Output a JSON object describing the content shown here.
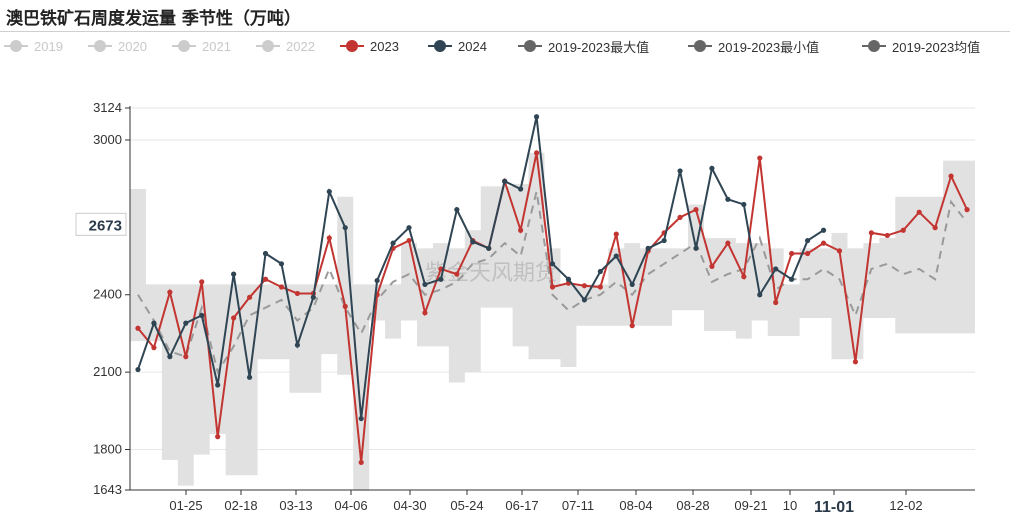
{
  "title": "澳巴铁矿石周度发运量 季节性（万吨）",
  "watermark": "紫金天风期货",
  "colors": {
    "c2023": "#c23531",
    "c2024": "#2f4554",
    "band": "#e1e1e1",
    "avg": "#9a9a9a",
    "legendOff": "#cccccc",
    "legendStat": "#666666"
  },
  "legend": [
    {
      "label": "2019",
      "active": false
    },
    {
      "label": "2020",
      "active": false
    },
    {
      "label": "2021",
      "active": false
    },
    {
      "label": "2022",
      "active": false
    },
    {
      "label": "2023",
      "active": true,
      "color": "#c23531"
    },
    {
      "label": "2024",
      "active": true,
      "color": "#2f4554"
    },
    {
      "label": "2019-2023最大值",
      "active": true,
      "color": "#666666"
    },
    {
      "label": "2019-2023最小值",
      "active": true,
      "color": "#666666"
    },
    {
      "label": "2019-2023均值",
      "active": true,
      "color": "#666666"
    }
  ],
  "chart_data": {
    "type": "line",
    "ylim": [
      1643,
      3124
    ],
    "yticks": [
      1643,
      1800,
      2100,
      2400,
      3000,
      3124
    ],
    "y_highlight": 2673,
    "xticks": [
      "01-25",
      "02-18",
      "03-13",
      "04-06",
      "04-30",
      "05-24",
      "06-17",
      "07-11",
      "08-04",
      "08-28",
      "09-21",
      "10",
      "11-01",
      "12-02"
    ],
    "x_highlight": "11-01",
    "weeks": 53,
    "series": [
      {
        "name": "2023",
        "values": [
          2270,
          2195,
          2410,
          2160,
          2450,
          1850,
          2310,
          2390,
          2460,
          2430,
          2405,
          2405,
          2620,
          2355,
          1750,
          2400,
          2580,
          2610,
          2330,
          2500,
          2480,
          2610,
          2580,
          2840,
          2650,
          2950,
          2430,
          2445,
          2435,
          2430,
          2635,
          2280,
          2570,
          2640,
          2700,
          2730,
          2510,
          2600,
          2470,
          2930,
          2370,
          2560,
          2560,
          2600,
          2570,
          2140,
          2640,
          2630,
          2650,
          2720,
          2660,
          2860,
          2730
        ]
      },
      {
        "name": "2024",
        "values": [
          2110,
          2290,
          2160,
          2290,
          2320,
          2050,
          2480,
          2080,
          2560,
          2520,
          2205,
          2390,
          2800,
          2660,
          1920,
          2455,
          2600,
          2660,
          2440,
          2460,
          2730,
          2605,
          2580,
          2840,
          2810,
          3090,
          2520,
          2460,
          2380,
          2490,
          2550,
          2440,
          2580,
          2610,
          2880,
          2580,
          2890,
          2770,
          2750,
          2400,
          2500,
          2460,
          2610,
          2650
        ]
      }
    ],
    "max": [
      2810,
      2440,
      2440,
      2440,
      2440,
      2440,
      2440,
      2440,
      2440,
      2440,
      2440,
      2440,
      2440,
      2780,
      2440,
      2440,
      2440,
      2600,
      2580,
      2600,
      2580,
      2650,
      2820,
      2820,
      2830,
      2950,
      2580,
      2440,
      2440,
      2440,
      2580,
      2600,
      2580,
      2580,
      2580,
      2750,
      2620,
      2620,
      2600,
      2600,
      2580,
      2440,
      2580,
      2580,
      2640,
      2580,
      2600,
      2620,
      2780,
      2780,
      2780,
      2920,
      2920
    ],
    "min": [
      2220,
      2220,
      1760,
      1660,
      1780,
      1860,
      1700,
      1700,
      2150,
      2150,
      2020,
      2020,
      2170,
      2090,
      1640,
      2300,
      2230,
      2300,
      2200,
      2200,
      2060,
      2100,
      2350,
      2350,
      2200,
      2150,
      2150,
      2120,
      2280,
      2280,
      2280,
      2280,
      2280,
      2280,
      2340,
      2340,
      2260,
      2260,
      2230,
      2300,
      2240,
      2240,
      2310,
      2310,
      2150,
      2150,
      2310,
      2310,
      2250,
      2250,
      2250,
      2250,
      2250
    ],
    "avg": [
      2400,
      2300,
      2180,
      2160,
      2350,
      2100,
      2200,
      2320,
      2350,
      2380,
      2300,
      2350,
      2500,
      2350,
      2250,
      2380,
      2450,
      2480,
      2400,
      2420,
      2450,
      2520,
      2540,
      2600,
      2550,
      2800,
      2400,
      2340,
      2380,
      2400,
      2450,
      2400,
      2480,
      2520,
      2560,
      2600,
      2450,
      2480,
      2500,
      2620,
      2420,
      2460,
      2460,
      2500,
      2460,
      2320,
      2500,
      2520,
      2480,
      2500,
      2460,
      2760,
      2680
    ]
  }
}
